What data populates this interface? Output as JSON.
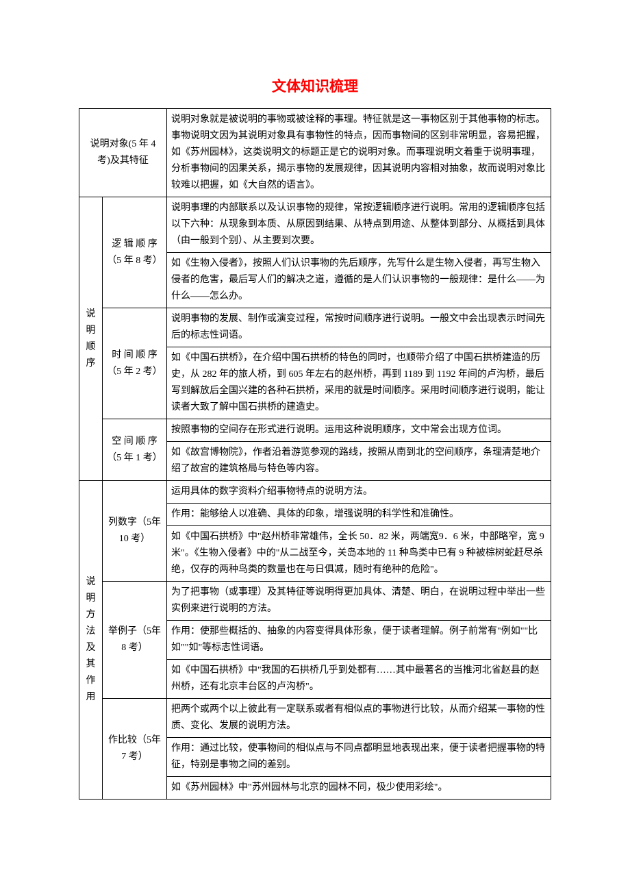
{
  "title": "文体知识梳理",
  "colors": {
    "title": "#ff0000",
    "border": "#000000",
    "text": "#000000",
    "background": "#ffffff"
  },
  "typography": {
    "title_fontsize": 21,
    "body_fontsize": 14,
    "line_height": 24
  },
  "row1": {
    "header": "说明对象(5 年 4 考)及其特征",
    "body": "说明对象就是被说明的事物或被诠释的事理。特征就是这一事物区别于其他事物的标志。事物说明文因为其说明对象具有事物性的特点，因而事物间的区别非常明显，容易把握，如《苏州园林》，这类说明文的标题正是它的说明对象。而事理说明文着重于说明事理，分析事物间的因果关系，揭示事物的发展规律，因其说明内容相对抽象，故而说明对象比较难以把握，如《大自然的语言》。"
  },
  "group2": {
    "header": "说明顺序",
    "r1_sub": "逻 辑 顺 序（5 年 8 考）",
    "r1_body": "说明事理的内部联系以及认识事物的规律，常按逻辑顺序进行说明。常用的逻辑顺序包括以下六种：从现象到本质、从原因到结果、从特点到用途、从整体到部分、从概括到具体（由一般到个别）、从主要到次要。",
    "r2_body": "如《生物入侵者》，按照人们认识事物的先后顺序，先写什么是生物入侵者，再写生物入侵者的危害，最后写人们的解决之道，遵循的是人们认识事物的一般规律：是什么——为什么——怎么办。",
    "r3_sub": "时 间 顺 序（5 年 2 考）",
    "r3_body": "说明事物的发展、制作或演变过程，常按时间顺序进行说明。一般文中会出现表示时间先后的标志性词语。",
    "r4_body": "如《中国石拱桥》，在介绍中国石拱桥的特色的同时，也顺带介绍了中国石拱桥建造的历史，从 282 年的旅人桥，到 605 年左右的赵州桥，再到 1189 到 1192 年间的卢沟桥，最后写到解放后全国兴建的各种石拱桥，采用的就是时间顺序。采用时间顺序进行说明，能让读者大致了解中国石拱桥的建造史。",
    "r5_sub": "空 间 顺 序（5 年 1 考）",
    "r5_body": "按照事物的空间存在形式进行说明。运用这种说明顺序，文中常会出现方位词。",
    "r6_body": "如《故宫博物院》，作者沿着游览参观的路线，按照从南到北的空间顺序，条理清楚地介绍了故宫的建筑格局与特色等内容。"
  },
  "group3": {
    "header": "说明方法及其作用",
    "r1_sub": "列数字（5年 10 考）",
    "r1_body": "运用具体的数字资料介绍事物特点的说明方法。",
    "r2_body": "作用：能够给人以准确、具体的印象，增强说明的科学性和准确性。",
    "r3_body": "如《中国石拱桥》中\"赵州桥非常雄伟，全长 50．82 米，两端宽9．6 米，中部略窄，宽 9 米\"。《生物入侵者》中的\"从二战至今，关岛本地的 11 种鸟类中已有 9 种被棕树蛇赶尽杀绝，仅存的两种鸟类的数量也在与日俱减，随时有绝种的危险\"。",
    "r4_sub": "举例子（5年 8 考）",
    "r4_body": "为了把事物（或事理）及其特征等说明得更加具体、清楚、明白，在说明过程中举出一些实例来进行说明的方法。",
    "r5_body": "作用：使那些概括的、抽象的内容变得具体形象，便于读者理解。例子前常有\"例如\"\"比如\"\"如\"等标志性词语。",
    "r6_body": "如《中国石拱桥》中\"我国的石拱桥几乎到处都有……其中最著名的当推河北省赵县的赵州桥，还有北京丰台区的卢沟桥\"。",
    "r7_sub": "作比较（5年 7 考）",
    "r7_body": "把两个或两个以上彼此有一定联系或者有相似点的事物进行比较，从而介绍某一事物的性质、变化、发展的说明方法。",
    "r8_body": "作用：通过比较，使事物间的相似点与不同点都明显地表现出来，便于读者把握事物的特征，特别是事物之间的差别。",
    "r9_body": "如《苏州园林》中\"苏州园林与北京的园林不同，极少使用彩绘\"。"
  }
}
